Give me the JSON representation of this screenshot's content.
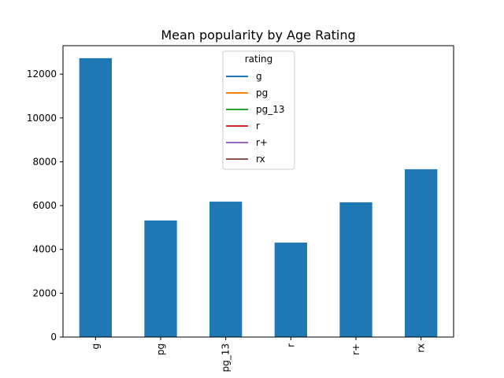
{
  "chart_data": {
    "type": "bar",
    "title": "Mean popularity by Age Rating",
    "xlabel": "",
    "ylabel": "",
    "categories": [
      "g",
      "pg",
      "pg_13",
      "r",
      "r+",
      "rx"
    ],
    "values": [
      12730,
      5320,
      6180,
      4310,
      6150,
      7660
    ],
    "ylim": [
      0,
      13300
    ],
    "yticks": [
      0,
      2000,
      4000,
      6000,
      8000,
      10000,
      12000
    ],
    "ytick_labels": [
      "0",
      "2000",
      "4000",
      "6000",
      "8000",
      "10000",
      "12000"
    ],
    "bar_color": "#1f77b4",
    "grid": false,
    "legend": {
      "title": "rating",
      "placement": "upper-center",
      "entries": [
        {
          "name": "g",
          "color": "#1f77b4"
        },
        {
          "name": "pg",
          "color": "#ff7f0e"
        },
        {
          "name": "pg_13",
          "color": "#2ca02c"
        },
        {
          "name": "r",
          "color": "#d62728"
        },
        {
          "name": "r+",
          "color": "#9467bd"
        },
        {
          "name": "rx",
          "color": "#8c564b"
        }
      ]
    }
  }
}
